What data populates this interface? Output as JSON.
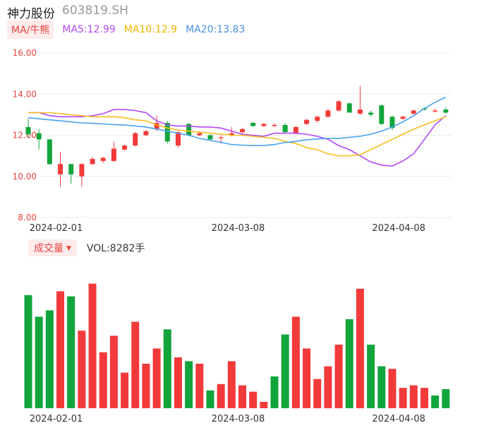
{
  "header": {
    "name": "神力股份",
    "code": "603819.SH"
  },
  "ma_legend": {
    "tag": "MA/牛熊",
    "ma5": "MA5:12.99",
    "ma10": "MA10:12.9",
    "ma20": "MA20:13.83"
  },
  "volume_legend": {
    "tag": "成交量",
    "value": "VOL:8282手"
  },
  "colors": {
    "up": "#f23a3a",
    "down": "#11a53c",
    "ma5": "#b247f5",
    "ma10": "#f7be1f",
    "ma20": "#4aa3f0",
    "axis_label": "#e8433f"
  },
  "chart_data": [
    {
      "type": "candlestick",
      "title": "",
      "ylim": [
        8,
        16
      ],
      "y_ticks": [
        "16.00",
        "14.00",
        "12.00",
        "10.00",
        "8.00"
      ],
      "x_tick_labels": [
        "2024-02-01",
        "2024-03-08",
        "2024-04-08"
      ],
      "x_tick_index": [
        3,
        20,
        35
      ],
      "candles": [
        {
          "o": 12.4,
          "h": 12.8,
          "l": 11.9,
          "c": 12.05
        },
        {
          "o": 12.1,
          "h": 12.3,
          "l": 11.3,
          "c": 11.8
        },
        {
          "o": 11.8,
          "h": 11.8,
          "l": 10.55,
          "c": 10.6
        },
        {
          "o": 10.1,
          "h": 11.2,
          "l": 9.5,
          "c": 10.6
        },
        {
          "o": 10.6,
          "h": 10.6,
          "l": 9.65,
          "c": 10.1
        },
        {
          "o": 10.0,
          "h": 10.65,
          "l": 9.5,
          "c": 10.6
        },
        {
          "o": 10.6,
          "h": 10.95,
          "l": 10.55,
          "c": 10.85
        },
        {
          "o": 10.75,
          "h": 10.95,
          "l": 10.65,
          "c": 10.9
        },
        {
          "o": 10.75,
          "h": 11.7,
          "l": 10.7,
          "c": 11.35
        },
        {
          "o": 11.3,
          "h": 11.55,
          "l": 11.25,
          "c": 11.5
        },
        {
          "o": 11.5,
          "h": 12.15,
          "l": 11.45,
          "c": 12.1
        },
        {
          "o": 12.0,
          "h": 12.25,
          "l": 11.95,
          "c": 12.2
        },
        {
          "o": 12.3,
          "h": 12.95,
          "l": 12.2,
          "c": 12.6
        },
        {
          "o": 12.6,
          "h": 12.7,
          "l": 11.6,
          "c": 11.7
        },
        {
          "o": 11.5,
          "h": 12.2,
          "l": 11.4,
          "c": 12.15
        },
        {
          "o": 12.55,
          "h": 12.6,
          "l": 11.95,
          "c": 12.0
        },
        {
          "o": 12.0,
          "h": 12.2,
          "l": 11.95,
          "c": 12.1
        },
        {
          "o": 12.0,
          "h": 12.05,
          "l": 11.75,
          "c": 11.8
        },
        {
          "o": 11.9,
          "h": 12.0,
          "l": 11.6,
          "c": 11.9
        },
        {
          "o": 12.0,
          "h": 12.4,
          "l": 11.95,
          "c": 12.1
        },
        {
          "o": 12.15,
          "h": 12.35,
          "l": 12.1,
          "c": 12.3
        },
        {
          "o": 12.6,
          "h": 12.65,
          "l": 12.4,
          "c": 12.45
        },
        {
          "o": 12.45,
          "h": 12.6,
          "l": 12.4,
          "c": 12.55
        },
        {
          "o": 12.45,
          "h": 12.6,
          "l": 12.4,
          "c": 12.5
        },
        {
          "o": 12.5,
          "h": 12.6,
          "l": 12.1,
          "c": 12.15
        },
        {
          "o": 12.1,
          "h": 12.45,
          "l": 12.05,
          "c": 12.4
        },
        {
          "o": 12.55,
          "h": 12.8,
          "l": 12.5,
          "c": 12.75
        },
        {
          "o": 12.7,
          "h": 12.95,
          "l": 12.6,
          "c": 12.9
        },
        {
          "o": 12.9,
          "h": 13.3,
          "l": 12.85,
          "c": 13.2
        },
        {
          "o": 13.2,
          "h": 13.7,
          "l": 13.15,
          "c": 13.65
        },
        {
          "o": 13.55,
          "h": 13.6,
          "l": 13.1,
          "c": 13.1
        },
        {
          "o": 13.05,
          "h": 14.4,
          "l": 13.0,
          "c": 13.25
        },
        {
          "o": 13.1,
          "h": 13.2,
          "l": 12.9,
          "c": 13.0
        },
        {
          "o": 13.45,
          "h": 13.5,
          "l": 12.5,
          "c": 12.55
        },
        {
          "o": 12.9,
          "h": 12.95,
          "l": 12.25,
          "c": 12.35
        },
        {
          "o": 12.8,
          "h": 12.95,
          "l": 12.75,
          "c": 12.9
        },
        {
          "o": 13.05,
          "h": 13.25,
          "l": 13.0,
          "c": 13.2
        },
        {
          "o": 13.3,
          "h": 13.35,
          "l": 13.2,
          "c": 13.25
        },
        {
          "o": 13.15,
          "h": 13.3,
          "l": 13.1,
          "c": 13.2
        },
        {
          "o": 13.25,
          "h": 13.35,
          "l": 13.05,
          "c": 13.1
        }
      ],
      "series": [
        {
          "name": "MA5",
          "values": [
            13.1,
            13.1,
            12.95,
            12.9,
            12.9,
            12.9,
            12.95,
            13.05,
            13.25,
            13.25,
            13.2,
            13.1,
            12.7,
            12.5,
            12.45,
            12.45,
            12.4,
            12.4,
            12.35,
            12.2,
            12.05,
            12.0,
            11.95,
            12.1,
            12.1,
            12.1,
            12.05,
            11.95,
            11.8,
            11.5,
            11.3,
            11.0,
            10.7,
            10.55,
            10.5,
            10.75,
            11.1,
            11.8,
            12.5,
            12.95
          ]
        },
        {
          "name": "MA10",
          "values": [
            13.1,
            13.1,
            13.1,
            13.05,
            13.0,
            12.95,
            12.9,
            12.9,
            12.9,
            12.85,
            12.75,
            12.7,
            12.5,
            12.35,
            12.25,
            12.2,
            12.15,
            12.1,
            12.05,
            12.0,
            12.0,
            11.95,
            11.9,
            11.85,
            11.7,
            11.6,
            11.4,
            11.3,
            11.1,
            11.0,
            11.0,
            11.05,
            11.3,
            11.55,
            11.8,
            12.05,
            12.3,
            12.5,
            12.7,
            12.9
          ]
        },
        {
          "name": "MA20",
          "values": [
            12.85,
            12.8,
            12.75,
            12.7,
            12.65,
            12.6,
            12.58,
            12.55,
            12.52,
            12.5,
            12.45,
            12.4,
            12.3,
            12.2,
            12.1,
            12.0,
            11.85,
            11.75,
            11.65,
            11.55,
            11.52,
            11.5,
            11.5,
            11.55,
            11.65,
            11.7,
            11.78,
            11.82,
            11.85,
            11.85,
            11.9,
            11.95,
            12.05,
            12.2,
            12.4,
            12.65,
            12.95,
            13.3,
            13.6,
            13.85
          ]
        }
      ]
    },
    {
      "type": "bar",
      "title": "",
      "x_tick_labels": [
        "2024-02-01",
        "2024-03-08",
        "2024-04-08"
      ],
      "x_tick_index": [
        3,
        20,
        35
      ],
      "ylim": [
        0,
        100
      ],
      "values": [
        89,
        72,
        77,
        92,
        88,
        61,
        98,
        44,
        57,
        28,
        68,
        35,
        47,
        62,
        40,
        37,
        35,
        14,
        19,
        37,
        18,
        13,
        5,
        25,
        58,
        72,
        47,
        23,
        33,
        50,
        70,
        94,
        50,
        33,
        31,
        16,
        18,
        16,
        10,
        15
      ],
      "directions": [
        "down",
        "down",
        "down",
        "up",
        "down",
        "up",
        "up",
        "up",
        "up",
        "up",
        "up",
        "up",
        "up",
        "down",
        "up",
        "down",
        "up",
        "down",
        "up",
        "up",
        "up",
        "up",
        "up",
        "down",
        "down",
        "up",
        "up",
        "up",
        "up",
        "up",
        "down",
        "up",
        "down",
        "down",
        "up",
        "up",
        "up",
        "up",
        "down",
        "down"
      ]
    }
  ]
}
